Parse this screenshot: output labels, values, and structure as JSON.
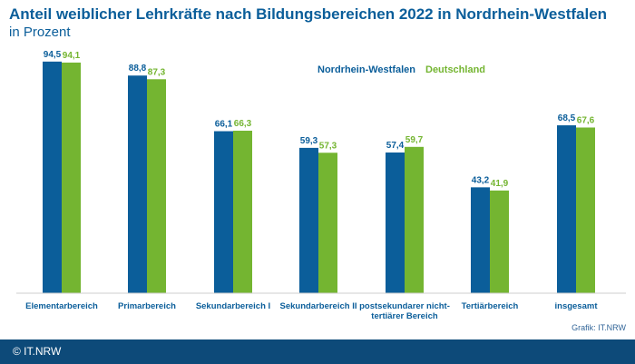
{
  "chart_data": {
    "type": "bar",
    "title": "Anteil weiblicher Lehrkräfte nach Bildungsbereichen 2022 in Nordrhein-Westfalen",
    "subtitle": "in Prozent",
    "categories": [
      [
        "Elementarbereich"
      ],
      [
        "Primarbereich"
      ],
      [
        "Sekundarbereich I"
      ],
      [
        "Sekundarbereich II"
      ],
      [
        "postsekundarer nicht-",
        "tertiärer Bereich"
      ],
      [
        "Tertiärbereich"
      ],
      [
        "insgesamt"
      ]
    ],
    "series": [
      {
        "name": "Nordrhein-Westfalen",
        "color": "#0b5e9a",
        "values": [
          94.5,
          88.8,
          66.1,
          59.3,
          57.4,
          43.2,
          68.5
        ],
        "labels": [
          "94,5",
          "88,8",
          "66,1",
          "59,3",
          "57,4",
          "43,2",
          "68,5"
        ]
      },
      {
        "name": "Deutschland",
        "color": "#74b531",
        "values": [
          94.1,
          87.3,
          66.3,
          57.3,
          59.7,
          41.9,
          67.6
        ],
        "labels": [
          "94,1",
          "87,3",
          "66,3",
          "57,3",
          "59,7",
          "41,9",
          "67,6"
        ]
      }
    ],
    "ylim": [
      0,
      100
    ],
    "xlabel": "",
    "ylabel": "",
    "grid": false
  },
  "credit": "Grafik: IT.NRW",
  "footer": "© IT.NRW"
}
